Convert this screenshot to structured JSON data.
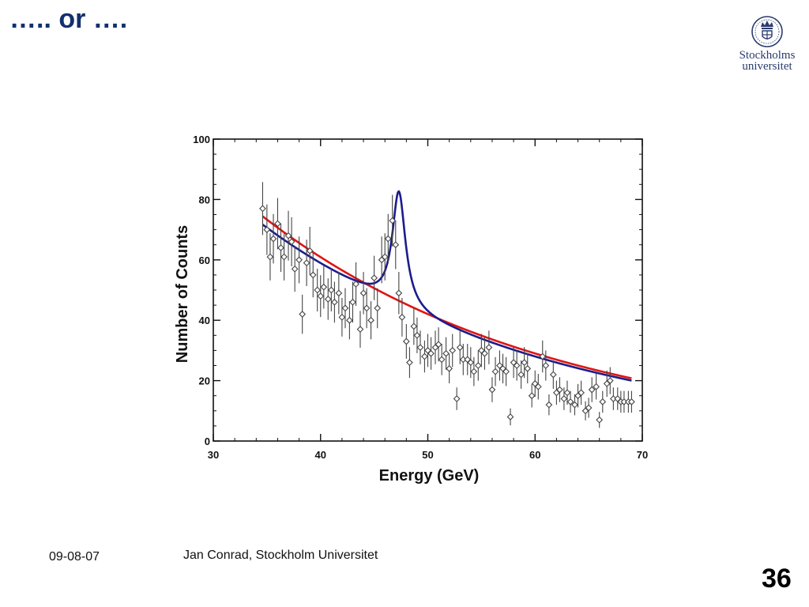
{
  "slide": {
    "title": "….. or ….",
    "footer_date": "09-08-07",
    "footer_author": "Jan Conrad, Stockholm Universitet",
    "page_number": "36"
  },
  "logo": {
    "line1": "Stockholms",
    "line2": "universitet",
    "icon": "crown-seal-icon"
  },
  "colors": {
    "title": "#12306e",
    "signal_fit": "#1c1c8c",
    "background_fit": "#e01414",
    "points": "#444444"
  },
  "chart_data": {
    "type": "scatter",
    "xlabel": "Energy (GeV)",
    "ylabel": "Number of Counts",
    "xlim": [
      30,
      70
    ],
    "ylim": [
      0,
      100
    ],
    "xticks": [
      "30",
      "40",
      "50",
      "60",
      "70"
    ],
    "yticks": [
      "0",
      "20",
      "40",
      "60",
      "80",
      "100"
    ],
    "grid": false,
    "series": [
      {
        "type": "scatter_errorbars",
        "x": [
          34.6,
          35.0,
          35.3,
          35.6,
          36.0,
          36.3,
          36.6,
          37.0,
          37.3,
          37.6,
          38.0,
          38.3,
          38.7,
          39.0,
          39.3,
          39.7,
          40.0,
          40.3,
          40.7,
          41.0,
          41.3,
          41.7,
          42.0,
          42.3,
          42.7,
          43.0,
          43.3,
          43.7,
          44.0,
          44.3,
          44.7,
          45.0,
          45.3,
          45.7,
          46.0,
          46.3,
          46.7,
          47.0,
          47.3,
          47.6,
          48.0,
          48.3,
          48.7,
          49.0,
          49.3,
          49.7,
          50.0,
          50.3,
          50.7,
          51.0,
          51.3,
          51.7,
          52.0,
          52.3,
          52.7,
          53.0,
          53.3,
          53.7,
          54.0,
          54.3,
          54.7,
          55.0,
          55.3,
          55.7,
          56.0,
          56.3,
          56.7,
          57.0,
          57.3,
          57.7,
          58.0,
          58.3,
          58.7,
          59.0,
          59.3,
          59.7,
          60.0,
          60.3,
          60.7,
          61.0,
          61.3,
          61.7,
          62.0,
          62.3,
          62.7,
          63.0,
          63.3,
          63.7,
          64.0,
          64.3,
          64.7,
          65.0,
          65.3,
          65.7,
          66.0,
          66.3,
          66.7,
          67.0,
          67.3,
          67.7,
          68.0,
          68.3,
          68.7,
          69.0
        ],
        "y": [
          77,
          70,
          61,
          67,
          72,
          64,
          61,
          68,
          66,
          57,
          60,
          42,
          59,
          63,
          55,
          50,
          48,
          51,
          47,
          50,
          46,
          49,
          41,
          44,
          40,
          46,
          52,
          37,
          49,
          44,
          40,
          54,
          44,
          60,
          61,
          67,
          73,
          65,
          49,
          41,
          33,
          26,
          38,
          35,
          31,
          28,
          30,
          29,
          31,
          32,
          27,
          29,
          24,
          30,
          14,
          31,
          27,
          27,
          26,
          23,
          25,
          30,
          29,
          31,
          17,
          23,
          25,
          24,
          23,
          8,
          26,
          25,
          22,
          26,
          24,
          15,
          19,
          18,
          28,
          25,
          12,
          22,
          16,
          17,
          14,
          16,
          13,
          12,
          15,
          16,
          10,
          11,
          17,
          18,
          7,
          13,
          19,
          20,
          14,
          14,
          13,
          13,
          13,
          13
        ]
      },
      {
        "type": "line",
        "function": "exponential",
        "amplitude": 268.7,
        "decay": 0.0371,
        "x_range": [
          34.6,
          69.0
        ]
      },
      {
        "type": "line",
        "function": "exponential_plus_peak",
        "amplitude": 258.3,
        "decay": 0.0371,
        "peak_center": 47.3,
        "peak_height": 38,
        "peak_halfwidth": 0.75,
        "x_range": [
          34.6,
          69.0
        ]
      }
    ]
  }
}
